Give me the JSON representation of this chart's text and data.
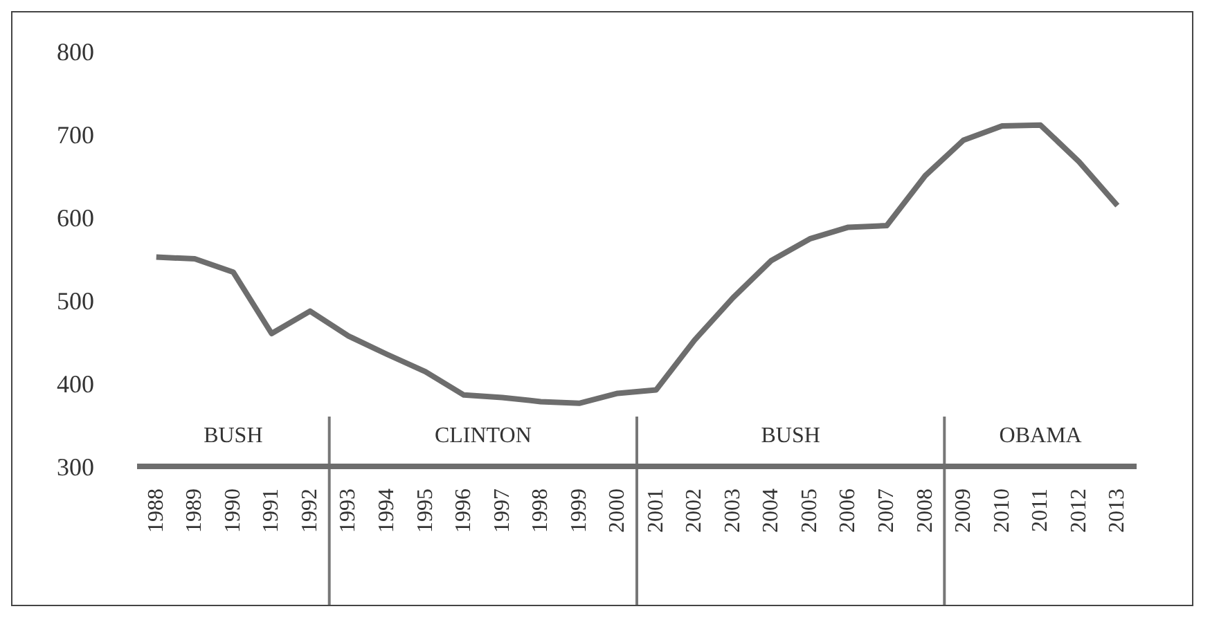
{
  "chart_data": {
    "type": "line",
    "x": [
      1988,
      1989,
      1990,
      1991,
      1992,
      1993,
      1994,
      1995,
      1996,
      1997,
      1998,
      1999,
      2000,
      2001,
      2002,
      2003,
      2004,
      2005,
      2006,
      2007,
      2008,
      2009,
      2010,
      2011,
      2012,
      2013
    ],
    "series": [
      {
        "color": "#6d6d6d",
        "values": [
          552,
          550,
          534,
          460,
          487,
          457,
          435,
          414,
          386,
          383,
          378,
          376,
          388,
          392,
          452,
          503,
          548,
          574,
          588,
          590,
          650,
          693,
          710,
          711,
          667,
          614
        ]
      }
    ],
    "xlim": [
      1987.5,
      2013.5
    ],
    "xticks": [
      1988,
      1989,
      1990,
      1991,
      1992,
      1993,
      1994,
      1995,
      1996,
      1997,
      1998,
      1999,
      2000,
      2001,
      2002,
      2003,
      2004,
      2005,
      2006,
      2007,
      2008,
      2009,
      2010,
      2011,
      2012,
      2013
    ],
    "ylim": [
      300,
      800
    ],
    "yticks": [
      300,
      400,
      500,
      600,
      700,
      800
    ],
    "grid": false,
    "legend": false,
    "marker": "none",
    "line_style": "solid",
    "ref_lines": [
      {
        "axis": "x",
        "value": 1992.5,
        "color": "#777777"
      },
      {
        "axis": "x",
        "value": 2000.5,
        "color": "#777777"
      },
      {
        "axis": "x",
        "value": 2008.5,
        "color": "#777777"
      }
    ],
    "annotations": [
      "BUSH",
      "CLINTON",
      "BUSH",
      "OBAMA"
    ]
  }
}
